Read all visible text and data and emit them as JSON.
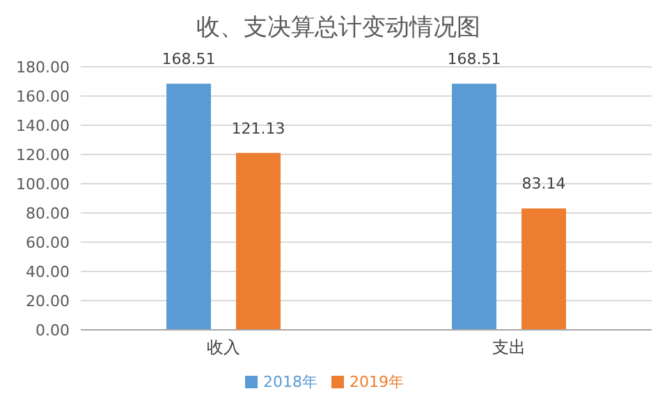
{
  "chart_data": {
    "type": "bar",
    "title": "收、支决算总计变动情况图",
    "categories": [
      "收入",
      "支出"
    ],
    "series": [
      {
        "name": "2018年",
        "color": "#5b9bd5",
        "values": [
          168.51,
          168.51
        ]
      },
      {
        "name": "2019年",
        "color": "#ed7d31",
        "values": [
          121.13,
          83.14
        ]
      }
    ],
    "ylim": [
      0,
      180
    ],
    "yticks": [
      {
        "value": 0,
        "label": "0.00"
      },
      {
        "value": 20,
        "label": "20.00"
      },
      {
        "value": 40,
        "label": "40.00"
      },
      {
        "value": 60,
        "label": "60.00"
      },
      {
        "value": 80,
        "label": "80.00"
      },
      {
        "value": 100,
        "label": "100.00"
      },
      {
        "value": 120,
        "label": "120.00"
      },
      {
        "value": 140,
        "label": "140.00"
      },
      {
        "value": 160,
        "label": "160.00"
      },
      {
        "value": 180,
        "label": "180.00"
      }
    ],
    "grid": "y",
    "legend": "bottom",
    "data_labels": true
  }
}
